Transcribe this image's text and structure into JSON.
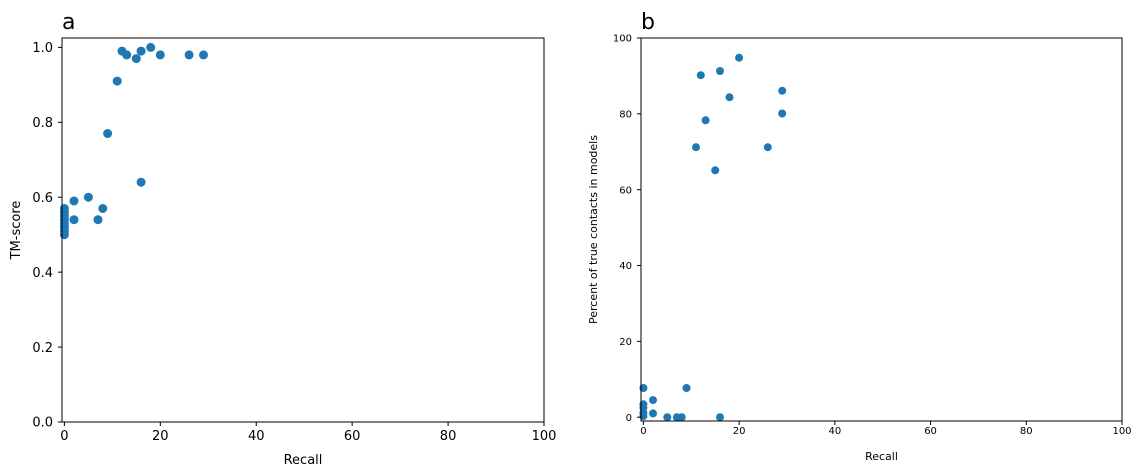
{
  "chart_data": [
    {
      "type": "scatter",
      "panel_label": "a",
      "xlabel": "Recall",
      "ylabel": "TM-score",
      "xlim": [
        -0.5,
        100
      ],
      "ylim": [
        0,
        1.025
      ],
      "xticks": [
        0,
        20,
        40,
        60,
        80,
        100
      ],
      "yticks": [
        0.0,
        0.2,
        0.4,
        0.6,
        0.8,
        1.0
      ],
      "ytick_labels": [
        "0.0",
        "0.2",
        "0.4",
        "0.6",
        "0.8",
        "1.0"
      ],
      "color": "#1f77b4",
      "grid": false,
      "points": [
        {
          "x": 0,
          "y": 0.57
        },
        {
          "x": 0,
          "y": 0.56
        },
        {
          "x": 0,
          "y": 0.55
        },
        {
          "x": 0,
          "y": 0.54
        },
        {
          "x": 0,
          "y": 0.53
        },
        {
          "x": 0,
          "y": 0.52
        },
        {
          "x": 0,
          "y": 0.51
        },
        {
          "x": 0,
          "y": 0.5
        },
        {
          "x": 2,
          "y": 0.59
        },
        {
          "x": 2,
          "y": 0.54
        },
        {
          "x": 5,
          "y": 0.6
        },
        {
          "x": 7,
          "y": 0.54
        },
        {
          "x": 8,
          "y": 0.57
        },
        {
          "x": 9,
          "y": 0.77
        },
        {
          "x": 11,
          "y": 0.91
        },
        {
          "x": 12,
          "y": 0.99
        },
        {
          "x": 13,
          "y": 0.98
        },
        {
          "x": 15,
          "y": 0.97
        },
        {
          "x": 16,
          "y": 0.99
        },
        {
          "x": 16,
          "y": 0.64
        },
        {
          "x": 18,
          "y": 1.0
        },
        {
          "x": 20,
          "y": 0.98
        },
        {
          "x": 26,
          "y": 0.98
        },
        {
          "x": 29,
          "y": 0.98
        }
      ]
    },
    {
      "type": "scatter",
      "panel_label": "b",
      "xlabel": "Recall",
      "ylabel": "Percent of true contacts in models",
      "xlim": [
        -0.5,
        100
      ],
      "ylim": [
        -1,
        100
      ],
      "xticks": [
        0,
        20,
        40,
        60,
        80,
        100
      ],
      "yticks": [
        0,
        20,
        40,
        60,
        80,
        100
      ],
      "ytick_labels": [
        "0",
        "20",
        "40",
        "60",
        "80",
        "100"
      ],
      "color": "#1f77b4",
      "grid": false,
      "points": [
        {
          "x": 0,
          "y": 7.7
        },
        {
          "x": 0,
          "y": 3.4
        },
        {
          "x": 0,
          "y": 2.5
        },
        {
          "x": 0,
          "y": 1.2
        },
        {
          "x": 0,
          "y": 0.3
        },
        {
          "x": 2,
          "y": 4.5
        },
        {
          "x": 2,
          "y": 1.0
        },
        {
          "x": 5,
          "y": 0
        },
        {
          "x": 7,
          "y": 0
        },
        {
          "x": 8,
          "y": 0
        },
        {
          "x": 9,
          "y": 7.7
        },
        {
          "x": 11,
          "y": 71.2
        },
        {
          "x": 12,
          "y": 90.2
        },
        {
          "x": 13,
          "y": 78.3
        },
        {
          "x": 15,
          "y": 65.1
        },
        {
          "x": 16,
          "y": 91.3
        },
        {
          "x": 16,
          "y": 0
        },
        {
          "x": 18,
          "y": 84.4
        },
        {
          "x": 20,
          "y": 94.8
        },
        {
          "x": 26,
          "y": 71.2
        },
        {
          "x": 29,
          "y": 86.1
        },
        {
          "x": 29,
          "y": 80.1
        }
      ]
    }
  ]
}
